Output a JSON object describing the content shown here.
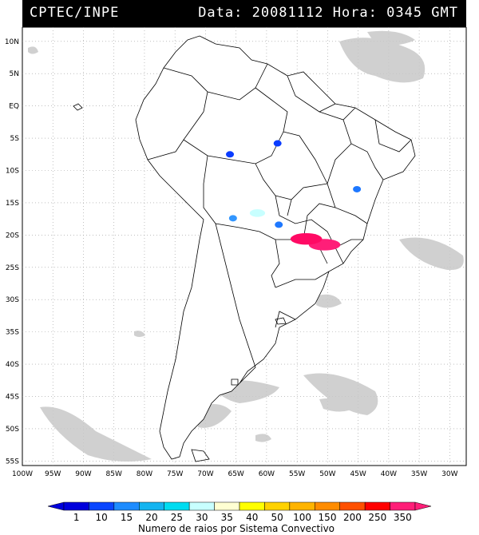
{
  "header": {
    "source": "CPTEC/INPE",
    "datetime": "Data: 20081112 Hora: 0345 GMT"
  },
  "map": {
    "lat_labels": [
      "10N",
      "5N",
      "EQ",
      "5S",
      "10S",
      "15S",
      "20S",
      "25S",
      "30S",
      "35S",
      "40S",
      "45S",
      "50S",
      "55S"
    ],
    "lon_labels": [
      "100W",
      "95W",
      "90W",
      "85W",
      "80W",
      "75W",
      "70W",
      "65W",
      "60W",
      "55W",
      "50W",
      "45W",
      "40W",
      "35W",
      "30W"
    ],
    "land_color": "#ffffff",
    "cloud_color": "#c8c8c8",
    "storms": [
      {
        "lon": -58.2,
        "lat": -5.8,
        "value": 10,
        "color": "#0a3cff"
      },
      {
        "lon": -66.0,
        "lat": -7.5,
        "value": 10,
        "color": "#0a3cff"
      },
      {
        "lon": -45.2,
        "lat": -12.9,
        "value": 15,
        "color": "#1e78ff"
      },
      {
        "lon": -65.5,
        "lat": -17.4,
        "value": 15,
        "color": "#3296ff"
      },
      {
        "lon": -61.5,
        "lat": -16.6,
        "value": 30,
        "color": "#c8ffff"
      },
      {
        "lon": -50.5,
        "lat": -21.5,
        "value": 350,
        "color": "#ff1e78"
      },
      {
        "lon": -58.0,
        "lat": -18.4,
        "value": 15,
        "color": "#1e78ff"
      },
      {
        "lon": -53.5,
        "lat": -20.6,
        "value": 300,
        "color": "#ff0a64"
      }
    ]
  },
  "colorbar": {
    "labels": [
      "1",
      "10",
      "15",
      "20",
      "25",
      "30",
      "35",
      "40",
      "50",
      "100",
      "150",
      "200",
      "250",
      "350"
    ],
    "colors": [
      "#0000dc",
      "#0a46ff",
      "#1e8cff",
      "#14b4f0",
      "#00dcf0",
      "#c8ffff",
      "#ffffd2",
      "#ffff00",
      "#ffd200",
      "#ffb400",
      "#ff8c00",
      "#ff5000",
      "#ff0000",
      "#ff1e78"
    ],
    "title": "Numero de raios por Sistema Convectivo"
  }
}
